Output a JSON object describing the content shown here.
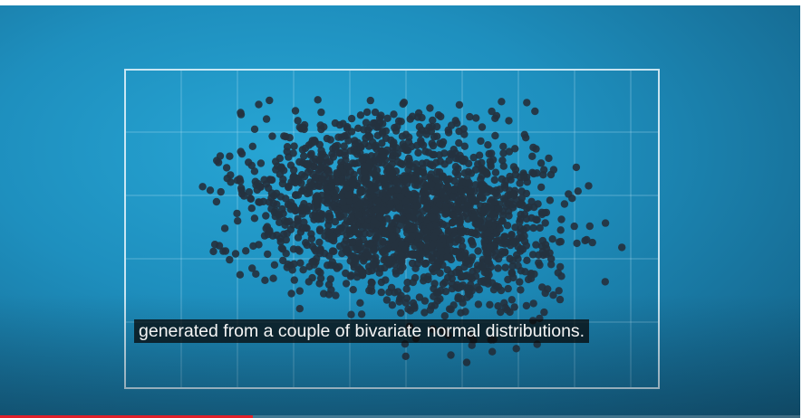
{
  "video": {
    "caption": "generated from a couple of bivariate normal distributions.",
    "progress_fraction": 0.316,
    "colors": {
      "background": "#1e8fbe",
      "points": "#25323f",
      "frame": "#e6f5fc",
      "progress": "#e0202a"
    }
  }
}
